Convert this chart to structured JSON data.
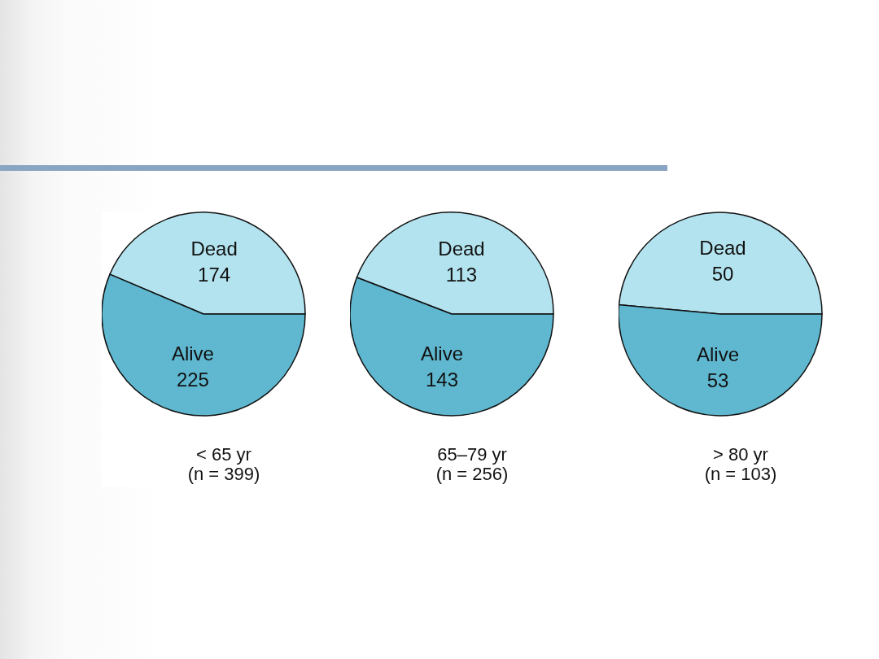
{
  "chart_data": [
    {
      "type": "pie",
      "title": "< 65 yr",
      "subtitle": "(n = 399)",
      "categories": [
        "Dead",
        "Alive"
      ],
      "values": [
        174,
        225
      ],
      "colors": [
        "#b3e3ef",
        "#5fb8d0"
      ],
      "data_labels": true,
      "legend": false
    },
    {
      "type": "pie",
      "title": "65–79 yr",
      "subtitle": "(n = 256)",
      "categories": [
        "Dead",
        "Alive"
      ],
      "values": [
        113,
        143
      ],
      "colors": [
        "#b3e3ef",
        "#5fb8d0"
      ],
      "data_labels": true,
      "legend": false
    },
    {
      "type": "pie",
      "title": "> 80 yr",
      "subtitle": "(n = 103)",
      "categories": [
        "Dead",
        "Alive"
      ],
      "values": [
        50,
        53
      ],
      "colors": [
        "#b3e3ef",
        "#5fb8d0"
      ],
      "data_labels": true,
      "legend": false
    }
  ]
}
